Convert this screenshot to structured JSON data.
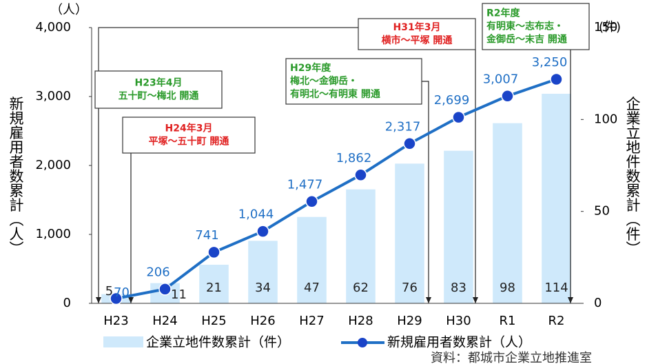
{
  "chart_data": {
    "type": "bar_line",
    "categories": [
      "H23",
      "H24",
      "H25",
      "H26",
      "H27",
      "H28",
      "H29",
      "H30",
      "R1",
      "R2"
    ],
    "series": [
      {
        "name": "企業立地件数累計（件）",
        "type": "bar",
        "axis": "y2",
        "color": "#cfe9fb",
        "values": [
          5,
          11,
          21,
          34,
          47,
          62,
          76,
          83,
          98,
          114
        ]
      },
      {
        "name": "新規雇用者数累計（人）",
        "type": "line",
        "axis": "y",
        "color": "#1f6fc5",
        "values": [
          70,
          206,
          741,
          1044,
          1477,
          1862,
          2317,
          2699,
          3007,
          3250
        ],
        "value_labels": [
          "70",
          "206",
          "741",
          "1,044",
          "1,477",
          "1,862",
          "2,317",
          "2,699",
          "3,007",
          "3,250"
        ]
      }
    ],
    "ylim": [
      0,
      4000
    ],
    "yticks": [
      0,
      {
        "value": 1000,
        "label": "1,000"
      },
      {
        "value": 2000,
        "label": "2,000"
      },
      {
        "value": 3000,
        "label": "3,000"
      },
      {
        "value": 4000,
        "label": "4,000"
      }
    ],
    "y2lim": [
      0,
      150
    ],
    "y2ticks": [
      0,
      50,
      100,
      150
    ],
    "y_unit": "（人）",
    "y2_unit": "(件)",
    "y_label": "新規雇用者数累計（人）",
    "y2_label": "企業立地件数累計（件）",
    "annotations": [
      {
        "lines": [
          "H23年4月",
          "五十町～梅北 開通"
        ],
        "color": "#2a9a2a"
      },
      {
        "lines": [
          "H24年3月",
          "平塚～五十町 開通"
        ],
        "color": "#e02020"
      },
      {
        "lines": [
          "H29年度",
          "梅北～金御岳・",
          "有明北～有明東 開通"
        ],
        "color": "#2a9a2a"
      },
      {
        "lines": [
          "H31年3月",
          "横市～平塚 開通"
        ],
        "color": "#e02020"
      },
      {
        "lines": [
          "R2年度",
          "有明東～志布志・",
          "金御岳～末吉 開通"
        ],
        "color": "#2a9a2a"
      }
    ],
    "source": "資料：都城市企業立地推進室"
  }
}
